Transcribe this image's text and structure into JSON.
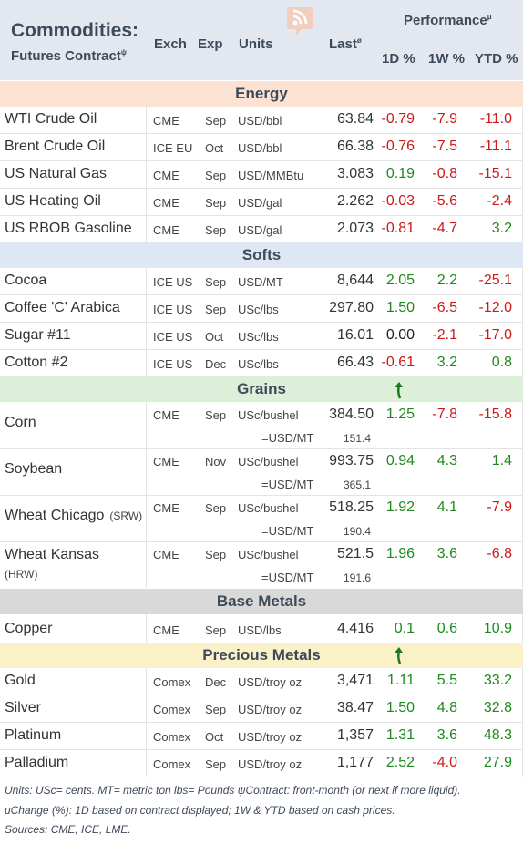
{
  "header": {
    "title": "Commodities:",
    "subtitle": "Futures Contract",
    "subtitle_mark": "ψ",
    "col_exch": "Exch",
    "col_exp": "Exp",
    "col_units": "Units",
    "col_last": "Last",
    "col_last_mark": "ø",
    "performance": "Performance",
    "performance_mark": "μ",
    "col_1d": "1D %",
    "col_1w": "1W %",
    "col_ytd": "YTD %"
  },
  "sections": {
    "energy": "Energy",
    "softs": "Softs",
    "grains": "Grains",
    "base_metals": "Base Metals",
    "precious_metals": "Precious Metals"
  },
  "energy": [
    {
      "name": "WTI Crude Oil",
      "exch": "CME",
      "exp": "Sep",
      "units": "USD/bbl",
      "last": "63.84",
      "d1": "-0.79",
      "w1": "-7.9",
      "ytd": "-11.0"
    },
    {
      "name": "Brent Crude Oil",
      "exch": "ICE EU",
      "exp": "Oct",
      "units": "USD/bbl",
      "last": "66.38",
      "d1": "-0.76",
      "w1": "-7.5",
      "ytd": "-11.1"
    },
    {
      "name": "US Natural Gas",
      "exch": "CME",
      "exp": "Sep",
      "units": "USD/MMBtu",
      "last": "3.083",
      "d1": "0.19",
      "w1": "-0.8",
      "ytd": "-15.1"
    },
    {
      "name": "US Heating Oil",
      "exch": "CME",
      "exp": "Sep",
      "units": "USD/gal",
      "last": "2.262",
      "d1": "-0.03",
      "w1": "-5.6",
      "ytd": "-2.4"
    },
    {
      "name": "US RBOB Gasoline",
      "exch": "CME",
      "exp": "Sep",
      "units": "USD/gal",
      "last": "2.073",
      "d1": "-0.81",
      "w1": "-4.7",
      "ytd": "3.2"
    }
  ],
  "softs": [
    {
      "name": "Cocoa",
      "exch": "ICE US",
      "exp": "Sep",
      "units": "USD/MT",
      "last": "8,644",
      "d1": "2.05",
      "w1": "2.2",
      "ytd": "-25.1"
    },
    {
      "name": "Coffee 'C' Arabica",
      "exch": "ICE US",
      "exp": "Sep",
      "units": "USc/lbs",
      "last": "297.80",
      "d1": "1.50",
      "w1": "-6.5",
      "ytd": "-12.0"
    },
    {
      "name": "Sugar #11",
      "exch": "ICE US",
      "exp": "Oct",
      "units": "USc/lbs",
      "last": "16.01",
      "d1": "0.00",
      "w1": "-2.1",
      "ytd": "-17.0"
    },
    {
      "name": "Cotton #2",
      "exch": "ICE US",
      "exp": "Dec",
      "units": "USc/lbs",
      "last": "66.43",
      "d1": "-0.61",
      "w1": "3.2",
      "ytd": "0.8"
    }
  ],
  "grains": [
    {
      "name": "Corn",
      "tag": "",
      "exch": "CME",
      "exp": "Sep",
      "units": "USc/bushel",
      "last": "384.50",
      "d1": "1.25",
      "w1": "-7.8",
      "ytd": "-15.8",
      "conv_label": "=USD/MT",
      "conv_value": "151.4"
    },
    {
      "name": "Soybean",
      "tag": "",
      "exch": "CME",
      "exp": "Nov",
      "units": "USc/bushel",
      "last": "993.75",
      "d1": "0.94",
      "w1": "4.3",
      "ytd": "1.4",
      "conv_label": "=USD/MT",
      "conv_value": "365.1"
    },
    {
      "name": "Wheat Chicago",
      "tag": "(SRW)",
      "exch": "CME",
      "exp": "Sep",
      "units": "USc/bushel",
      "last": "518.25",
      "d1": "1.92",
      "w1": "4.1",
      "ytd": "-7.9",
      "conv_label": "=USD/MT",
      "conv_value": "190.4"
    },
    {
      "name": "Wheat Kansas",
      "tag": "(HRW)",
      "exch": "CME",
      "exp": "Sep",
      "units": "USc/bushel",
      "last": "521.5",
      "d1": "1.96",
      "w1": "3.6",
      "ytd": "-6.8",
      "conv_label": "=USD/MT",
      "conv_value": "191.6"
    }
  ],
  "base_metals": [
    {
      "name": "Copper",
      "exch": "CME",
      "exp": "Sep",
      "units": "USD/lbs",
      "last": "4.416",
      "d1": "0.1",
      "w1": "0.6",
      "ytd": "10.9"
    }
  ],
  "precious_metals": [
    {
      "name": "Gold",
      "exch": "Comex",
      "exp": "Dec",
      "units": "USD/troy oz",
      "last": "3,471",
      "d1": "1.11",
      "w1": "5.5",
      "ytd": "33.2"
    },
    {
      "name": "Silver",
      "exch": "Comex",
      "exp": "Sep",
      "units": "USD/troy oz",
      "last": "38.47",
      "d1": "1.50",
      "w1": "4.8",
      "ytd": "32.8"
    },
    {
      "name": "Platinum",
      "exch": "Comex",
      "exp": "Oct",
      "units": "USD/troy oz",
      "last": "1,357",
      "d1": "1.31",
      "w1": "3.6",
      "ytd": "48.3"
    },
    {
      "name": "Palladium",
      "exch": "Comex",
      "exp": "Sep",
      "units": "USD/troy oz",
      "last": "1,177",
      "d1": "2.52",
      "w1": "-4.0",
      "ytd": "27.9"
    }
  ],
  "footnotes": {
    "line1": "Units: USc= cents.   MT= metric ton    lbs= Pounds   ψContract: front-month (or next if more liquid).",
    "line2": "μChange (%): 1D based on contract displayed; 1W & YTD based on cash prices.",
    "line3": "Sources: CME, ICE, LME."
  },
  "colors": {
    "header_bg": "#e3e8f0",
    "energy_bg": "#fbe2d3",
    "softs_bg": "#dde8f4",
    "grains_bg": "#dcefd8",
    "base_bg": "#d9d9d9",
    "precious_bg": "#fbf1c8",
    "negative": "#cc1a1a",
    "positive": "#1e8a1e"
  },
  "icons": {
    "logo": "rss-logo-icon",
    "trend_marker": "green-arrow-icon"
  }
}
